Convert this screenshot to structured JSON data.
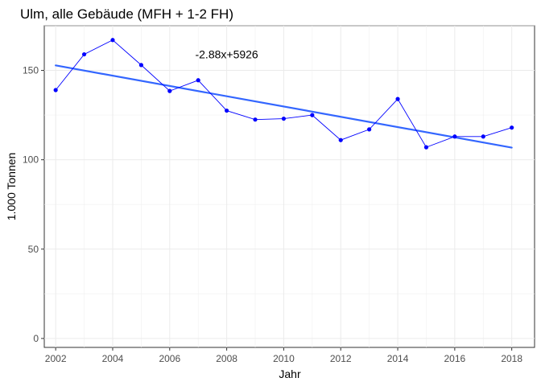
{
  "chart_data": {
    "type": "line",
    "title": "Ulm, alle Gebäude (MFH + 1-2 FH)",
    "xlabel": "Jahr",
    "ylabel": "1.000 Tonnen",
    "xlim": [
      2001.6,
      2018.8
    ],
    "ylim": [
      -5,
      175
    ],
    "x_ticks": [
      2002,
      2004,
      2006,
      2008,
      2010,
      2012,
      2014,
      2016,
      2018
    ],
    "y_ticks": [
      0,
      50,
      100,
      150
    ],
    "grid": true,
    "series": [
      {
        "color": "#0000ff",
        "marker": "point",
        "x": [
          2002,
          2003,
          2004,
          2005,
          2006,
          2007,
          2008,
          2009,
          2010,
          2011,
          2012,
          2013,
          2014,
          2015,
          2016,
          2017,
          2018
        ],
        "values": [
          139,
          159,
          167,
          153,
          138.5,
          144.5,
          127.5,
          122.5,
          123,
          125,
          111,
          117,
          134,
          107,
          113,
          113,
          118
        ]
      }
    ],
    "trendline": {
      "color": "#3366ff",
      "slope": -2.88,
      "intercept": 5926,
      "x_range": [
        2002,
        2018
      ],
      "y_range": [
        152.8,
        106.8
      ]
    },
    "annotation": {
      "text": "-2.88x+5926",
      "x": 2008,
      "y": 159
    }
  }
}
